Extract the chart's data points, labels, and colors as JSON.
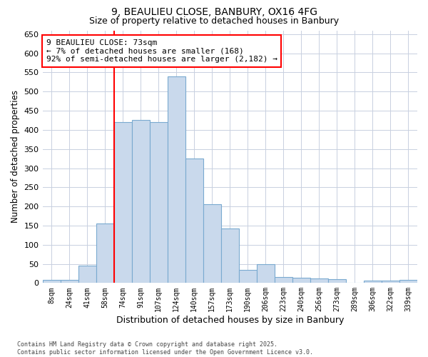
{
  "title_line1": "9, BEAULIEU CLOSE, BANBURY, OX16 4FG",
  "title_line2": "Size of property relative to detached houses in Banbury",
  "xlabel": "Distribution of detached houses by size in Banbury",
  "ylabel": "Number of detached properties",
  "categories": [
    "8sqm",
    "24sqm",
    "41sqm",
    "58sqm",
    "74sqm",
    "91sqm",
    "107sqm",
    "124sqm",
    "140sqm",
    "157sqm",
    "173sqm",
    "190sqm",
    "206sqm",
    "223sqm",
    "240sqm",
    "256sqm",
    "273sqm",
    "289sqm",
    "306sqm",
    "322sqm",
    "339sqm"
  ],
  "values": [
    8,
    8,
    45,
    155,
    420,
    425,
    420,
    540,
    325,
    205,
    143,
    35,
    50,
    15,
    14,
    12,
    10,
    0,
    7,
    7,
    8
  ],
  "bar_color": "#c9d9ec",
  "bar_edge_color": "#7aaad0",
  "grid_color": "#c8d0e0",
  "background_color": "#ffffff",
  "vline_color": "red",
  "vline_x_index": 4,
  "annotation_text": "9 BEAULIEU CLOSE: 73sqm\n← 7% of detached houses are smaller (168)\n92% of semi-detached houses are larger (2,182) →",
  "annotation_box_color": "white",
  "annotation_box_edge_color": "red",
  "ylim": [
    0,
    660
  ],
  "yticks": [
    0,
    50,
    100,
    150,
    200,
    250,
    300,
    350,
    400,
    450,
    500,
    550,
    600,
    650
  ],
  "footer_text": "Contains HM Land Registry data © Crown copyright and database right 2025.\nContains public sector information licensed under the Open Government Licence v3.0.",
  "figsize": [
    6.0,
    5.0
  ],
  "dpi": 100
}
